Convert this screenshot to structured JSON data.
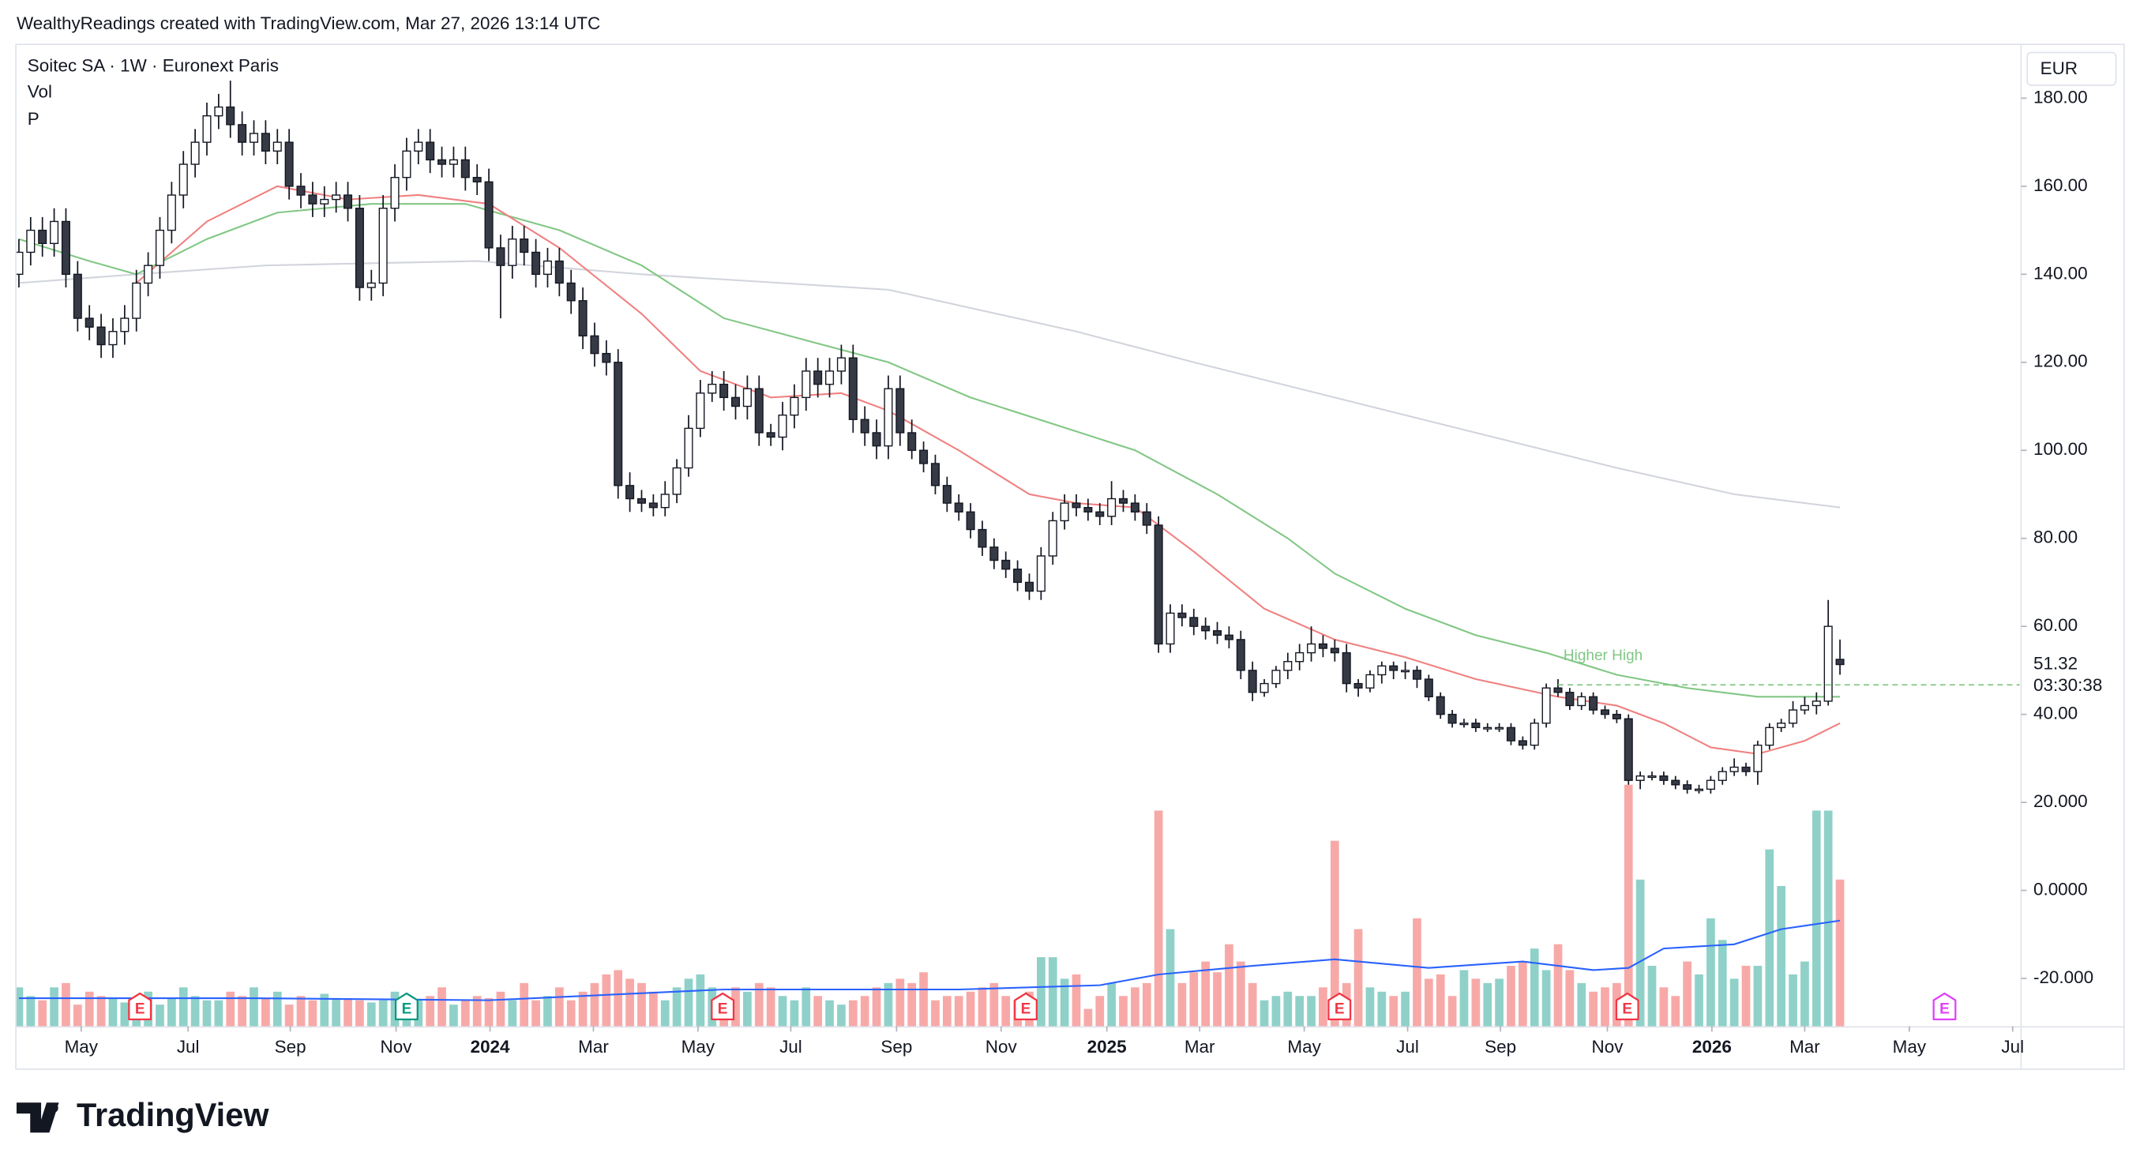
{
  "header": "WealthyReadings created with TradingView.com, Mar 27, 2026 13:14 UTC",
  "logo": "TradingView",
  "chart_data": {
    "type": "candlestick",
    "title": "Soitec SA · 1W · Euronext Paris",
    "indicator_labels": [
      "Vol",
      "P"
    ],
    "currency": "EUR",
    "up_color": "#ffffff",
    "down_color": "#363a45",
    "volume_up_color": "#8fd1c9",
    "volume_down_color": "#f7a9a8",
    "xlim": [
      -0.2,
      170.3
    ],
    "ylim": [
      -30.85,
      192.4
    ],
    "yticks": [
      {
        "value": 180,
        "label": "180.00"
      },
      {
        "value": 160,
        "label": "160.00"
      },
      {
        "value": 140,
        "label": "140.00"
      },
      {
        "value": 120,
        "label": "120.00"
      },
      {
        "value": 100,
        "label": "100.00"
      },
      {
        "value": 80,
        "label": "80.00"
      },
      {
        "value": 60,
        "label": "60.00"
      },
      {
        "value": 40,
        "label": "40.00"
      },
      {
        "value": 20,
        "label": "20.000"
      },
      {
        "value": 0,
        "label": "0.0000"
      },
      {
        "value": -20,
        "label": "-20.000"
      }
    ],
    "xticks": [
      {
        "value": 5.3,
        "label": "May"
      },
      {
        "value": 14.4,
        "label": "Jul"
      },
      {
        "value": 23.1,
        "label": "Sep"
      },
      {
        "value": 32.1,
        "label": "Nov"
      },
      {
        "value": 40.1,
        "label": "2024"
      },
      {
        "value": 48.9,
        "label": "Mar"
      },
      {
        "value": 57.8,
        "label": "May"
      },
      {
        "value": 65.7,
        "label": "Jul"
      },
      {
        "value": 74.7,
        "label": "Sep"
      },
      {
        "value": 83.6,
        "label": "Nov"
      },
      {
        "value": 92.6,
        "label": "2025"
      },
      {
        "value": 100.5,
        "label": "Mar"
      },
      {
        "value": 109.4,
        "label": "May"
      },
      {
        "value": 118.2,
        "label": "Jul"
      },
      {
        "value": 126.1,
        "label": "Sep"
      },
      {
        "value": 135.2,
        "label": "Nov"
      },
      {
        "value": 144.1,
        "label": "2026"
      },
      {
        "value": 152,
        "label": "Mar"
      },
      {
        "value": 160.9,
        "label": "May"
      },
      {
        "value": 169.7,
        "label": "Jul"
      }
    ],
    "open": [
      140,
      145,
      150,
      147,
      152,
      140,
      130,
      128,
      124,
      127,
      130,
      138,
      142,
      150,
      158,
      165,
      170,
      176,
      178,
      174,
      170,
      172,
      168,
      170,
      160,
      158,
      156,
      157,
      158,
      155,
      137,
      138,
      155,
      162,
      168,
      170,
      166,
      165,
      166,
      162,
      161,
      146,
      142,
      148,
      145,
      140,
      143,
      138,
      134,
      126,
      122,
      120,
      92,
      89,
      88,
      87,
      90,
      96,
      105,
      113,
      115,
      112,
      110,
      114,
      104,
      103,
      108,
      112,
      118,
      115,
      118,
      121,
      107,
      104,
      101,
      114,
      104,
      100,
      97,
      92,
      88,
      86,
      82,
      78,
      75,
      73,
      70,
      68,
      76,
      84,
      88,
      87,
      86,
      85,
      89,
      88,
      86,
      83,
      56,
      63,
      62,
      60,
      59,
      58,
      57,
      50,
      45,
      47,
      50,
      52,
      54,
      56,
      55,
      54,
      47,
      46,
      49,
      51,
      50,
      50,
      48,
      44,
      40,
      38,
      38,
      37,
      37,
      37,
      34,
      33,
      38,
      46,
      45,
      42,
      44,
      41,
      40,
      39,
      25,
      26,
      26,
      25,
      24,
      23,
      23,
      25,
      27,
      28,
      27,
      33,
      37,
      38,
      41,
      42,
      43,
      52.5
    ],
    "high": [
      148,
      153,
      153,
      155,
      155,
      143,
      133,
      131,
      130,
      133,
      141,
      145,
      153,
      161,
      168,
      173,
      179,
      181,
      184,
      177,
      175,
      175,
      173,
      173,
      163,
      161,
      160,
      161,
      161,
      158,
      141,
      158,
      165,
      171,
      173,
      173,
      169,
      169,
      169,
      165,
      164,
      149,
      151,
      151,
      148,
      146,
      146,
      141,
      137,
      129,
      125,
      123,
      95,
      91,
      90,
      93,
      98,
      108,
      116,
      118,
      118,
      115,
      117,
      117,
      106,
      111,
      115,
      121,
      121,
      121,
      124,
      124,
      110,
      107,
      117,
      117,
      107,
      102,
      99,
      94,
      90,
      88,
      84,
      80,
      77,
      75,
      72,
      78,
      86,
      90,
      90,
      89,
      88,
      93,
      91,
      90,
      88,
      85,
      65,
      65,
      64,
      62,
      61,
      60,
      59,
      52,
      48,
      51,
      54,
      56,
      60,
      58,
      57,
      56,
      48,
      50,
      52,
      52,
      52,
      51,
      49,
      45,
      41,
      39,
      39,
      38,
      38,
      38,
      35,
      39,
      47,
      48,
      46,
      45,
      45,
      42,
      41,
      40,
      27,
      27,
      27,
      26,
      25,
      24,
      26,
      28,
      30,
      29,
      34,
      38,
      39,
      43,
      44,
      45,
      66,
      57
    ],
    "low": [
      137,
      142,
      144,
      144,
      137,
      127,
      125,
      121,
      121,
      124,
      127,
      135,
      139,
      147,
      155,
      162,
      167,
      173,
      171,
      167,
      167,
      165,
      165,
      157,
      155,
      153,
      153,
      154,
      152,
      134,
      134,
      135,
      152,
      159,
      165,
      163,
      162,
      162,
      159,
      158,
      143,
      130,
      139,
      142,
      137,
      137,
      135,
      131,
      123,
      119,
      117,
      89,
      86,
      86,
      85,
      85,
      88,
      94,
      103,
      111,
      109,
      107,
      107,
      101,
      101,
      100,
      105,
      109,
      112,
      112,
      115,
      104,
      101,
      98,
      98,
      101,
      98,
      95,
      90,
      86,
      84,
      80,
      76,
      73,
      71,
      68,
      66,
      66,
      74,
      82,
      85,
      84,
      83,
      83,
      86,
      84,
      81,
      54,
      54,
      60,
      58,
      57,
      56,
      55,
      48,
      43,
      44,
      46,
      48,
      50,
      52,
      53,
      52,
      45,
      44,
      45,
      47,
      48,
      48,
      46,
      43,
      39,
      37,
      37,
      36,
      36,
      36,
      33,
      32,
      32,
      37,
      44,
      41,
      41,
      40,
      39,
      38,
      24,
      23,
      25,
      24,
      23,
      22,
      22,
      22,
      24,
      26,
      26,
      24,
      32,
      36,
      37,
      40,
      40,
      42,
      49
    ],
    "close": [
      145,
      150,
      147,
      152,
      140,
      130,
      128,
      124,
      127,
      130,
      138,
      142,
      150,
      158,
      165,
      170,
      176,
      178,
      174,
      170,
      172,
      168,
      170,
      160,
      158,
      156,
      157,
      158,
      155,
      137,
      138,
      155,
      162,
      168,
      170,
      166,
      165,
      166,
      162,
      161,
      146,
      142,
      148,
      145,
      140,
      143,
      138,
      134,
      126,
      122,
      120,
      92,
      89,
      88,
      87,
      90,
      96,
      105,
      113,
      115,
      112,
      110,
      114,
      104,
      103,
      108,
      112,
      118,
      115,
      118,
      121,
      107,
      104,
      101,
      114,
      104,
      100,
      97,
      92,
      88,
      86,
      82,
      78,
      75,
      73,
      70,
      68,
      76,
      84,
      88,
      87,
      86,
      85,
      89,
      88,
      86,
      83,
      56,
      63,
      62,
      60,
      59,
      58,
      57,
      50,
      45,
      47,
      50,
      52,
      54,
      56,
      55,
      54,
      47,
      46,
      49,
      51,
      50,
      50,
      48,
      44,
      40,
      38,
      38,
      37,
      37,
      37,
      34,
      33,
      38,
      46,
      45,
      42,
      44,
      41,
      40,
      39,
      25,
      26,
      26,
      25,
      24,
      23,
      23,
      25,
      27,
      28,
      27,
      33,
      37,
      38,
      41,
      42,
      43,
      60,
      51.32
    ],
    "volume": [
      18,
      14,
      12,
      18,
      20,
      10,
      16,
      14,
      13,
      11,
      12,
      16,
      10,
      13,
      18,
      14,
      12,
      12,
      16,
      14,
      18,
      13,
      16,
      10,
      14,
      12,
      15,
      13,
      13,
      12,
      11,
      12,
      16,
      10,
      12,
      14,
      18,
      10,
      12,
      14,
      13,
      16,
      12,
      20,
      12,
      14,
      18,
      12,
      16,
      20,
      24,
      26,
      22,
      20,
      16,
      12,
      18,
      22,
      24,
      18,
      14,
      18,
      16,
      20,
      18,
      14,
      12,
      18,
      14,
      12,
      10,
      12,
      14,
      18,
      20,
      22,
      20,
      25,
      12,
      14,
      14,
      16,
      18,
      20,
      14,
      12,
      16,
      32,
      32,
      22,
      24,
      8,
      14,
      20,
      14,
      18,
      20,
      100,
      45,
      20,
      25,
      30,
      25,
      38,
      30,
      20,
      12,
      14,
      16,
      14,
      14,
      18,
      86,
      20,
      45,
      18,
      16,
      14,
      16,
      50,
      22,
      24,
      14,
      26,
      22,
      20,
      22,
      28,
      30,
      36,
      26,
      38,
      26,
      20,
      16,
      18,
      20,
      112,
      68,
      28,
      18,
      14,
      30,
      24,
      50,
      40,
      22,
      28,
      28,
      82,
      65,
      24,
      30,
      100,
      100,
      68
    ],
    "moving_averages": [
      {
        "color": "#d1d4dc",
        "x": [
          0,
          10,
          21,
          39,
          53,
          74,
          90,
          100,
          112,
          124,
          136,
          146,
          155
        ],
        "values": [
          138,
          140,
          142,
          143,
          140,
          136.5,
          127,
          120,
          112,
          104,
          96,
          90,
          87
        ]
      },
      {
        "color": "#81c784",
        "x": [
          0,
          6,
          10,
          16,
          22,
          30,
          38,
          46,
          53,
          60,
          67,
          74,
          81,
          88,
          95,
          102,
          108,
          112,
          118,
          124,
          130,
          136,
          142,
          148,
          155
        ],
        "values": [
          148,
          143,
          140,
          148,
          154,
          156,
          156,
          150,
          142,
          130,
          125,
          120,
          112,
          106,
          100,
          90,
          80,
          72,
          64,
          58,
          54,
          49,
          46,
          44,
          44
        ]
      },
      {
        "color": "#f08080",
        "x": [
          10,
          16,
          22,
          28,
          34,
          40,
          46,
          53,
          58,
          64,
          70,
          74,
          80,
          86,
          90,
          95,
          100,
          106,
          112,
          118,
          124,
          131,
          136,
          140,
          144,
          148,
          152,
          155
        ],
        "values": [
          138,
          152,
          160,
          157,
          158,
          156,
          146,
          131,
          118,
          112,
          113,
          109,
          100,
          90,
          88,
          87,
          77,
          64,
          57,
          53,
          48,
          44,
          42,
          38,
          32.5,
          31,
          34,
          38
        ]
      }
    ],
    "volume_ma": {
      "color": "#2962ff",
      "x": [
        0,
        20,
        40,
        60,
        80,
        92,
        97,
        105,
        112,
        120,
        128,
        134,
        137,
        140,
        146,
        150,
        155
      ],
      "values": [
        13,
        13,
        12,
        17,
        17,
        19,
        24,
        28,
        31,
        27,
        30,
        26,
        27,
        36,
        38,
        45,
        49
      ]
    },
    "events": [
      {
        "x": 10.3,
        "label": "E",
        "color": "#f23645"
      },
      {
        "x": 33,
        "label": "E",
        "color": "#089981"
      },
      {
        "x": 59.9,
        "label": "E",
        "color": "#f23645"
      },
      {
        "x": 85.7,
        "label": "E",
        "color": "#f23645"
      },
      {
        "x": 112.4,
        "label": "E",
        "color": "#f23645"
      },
      {
        "x": 136.9,
        "label": "E",
        "color": "#f23645"
      },
      {
        "x": 163.9,
        "label": "E",
        "color": "#e040fb"
      }
    ],
    "annotation": {
      "text": "Higher High",
      "x": 131,
      "y": 46.7,
      "color": "#81c784"
    },
    "last_price": 51.32,
    "countdown": "03:30:38"
  }
}
